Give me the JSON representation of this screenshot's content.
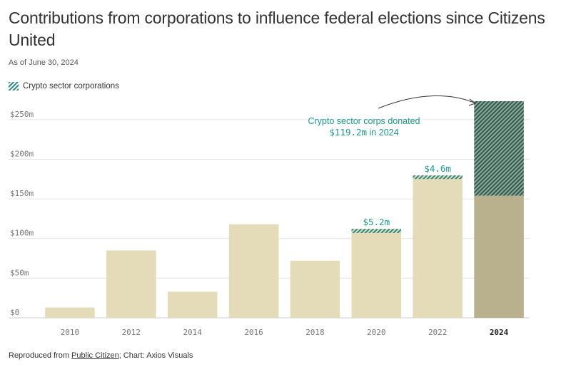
{
  "header": {
    "title": "Contributions from corporations to influence federal elections since Citizens United",
    "subtitle": "As of June 30, 2024"
  },
  "legend": {
    "label": "Crypto sector corporations"
  },
  "footer": {
    "prefix": "Reproduced from ",
    "source_link": "Public Citizen",
    "suffix": "; Chart: Axios Visuals"
  },
  "annotation": {
    "line1": "Crypto sector corps donated",
    "amount": "$119.2m",
    "year_text": " in 2024"
  },
  "colors": {
    "base": "#e4dcb8",
    "base_highlight": "#b9b08d",
    "crypto": "#2a8a82",
    "crypto_dark": "#2f5a4e",
    "label_teal": "#1a9a8e",
    "grid": "#e3e3e3",
    "axis_text": "#777777"
  },
  "chart_data": {
    "type": "bar",
    "stacked": true,
    "categories": [
      "2010",
      "2012",
      "2014",
      "2016",
      "2018",
      "2020",
      "2022",
      "2024"
    ],
    "highlight_category": "2024",
    "series": [
      {
        "values": [
          13,
          85,
          33,
          118,
          72,
          107,
          175,
          154
        ]
      },
      {
        "name": "Crypto sector corporations",
        "values": [
          0,
          0,
          0,
          0,
          0,
          5.2,
          4.6,
          119.2
        ]
      }
    ],
    "data_labels": [
      {
        "category": "2020",
        "text": "$5.2m"
      },
      {
        "category": "2022",
        "text": "$4.6m"
      }
    ],
    "y_ticks": [
      {
        "value": 0,
        "label": "$0"
      },
      {
        "value": 50,
        "label": "$50m"
      },
      {
        "value": 100,
        "label": "$100m"
      },
      {
        "value": 150,
        "label": "$150m"
      },
      {
        "value": 200,
        "label": "$200m"
      },
      {
        "value": 250,
        "label": "$250m"
      }
    ],
    "ylim": [
      0,
      275
    ],
    "grid": true,
    "legend_position": "top-left"
  }
}
